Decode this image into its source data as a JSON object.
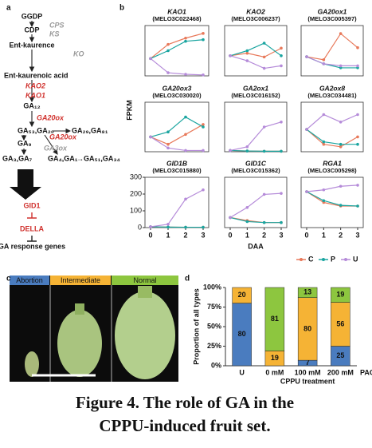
{
  "panels": [
    "a",
    "b",
    "c",
    "d"
  ],
  "caption": [
    "Figure 4. The role of GA in the",
    "CPPU-induced fruit set."
  ],
  "pathway": {
    "nodes": [
      {
        "text": "GGDP",
        "style": "plain"
      },
      {
        "text": "CDP",
        "style": "plain"
      },
      {
        "text": "CPS",
        "style": "gray"
      },
      {
        "text": "KS",
        "style": "gray"
      },
      {
        "text": "Ent-kaurence",
        "style": "plain"
      },
      {
        "text": "KO",
        "style": "gray"
      },
      {
        "text": "Ent-kaurenoic acid",
        "style": "plain"
      },
      {
        "text": "KAO2",
        "style": "red"
      },
      {
        "text": "KAO1",
        "style": "red"
      },
      {
        "text": "GA₁₂",
        "style": "plain"
      },
      {
        "text": "GA20ox",
        "style": "red"
      },
      {
        "text": "GA₅₃,GA₂₀",
        "style": "plain"
      },
      {
        "text": "GA₂₉,GA₈₁",
        "style": "plain"
      },
      {
        "text": "GA20ox",
        "style": "red"
      },
      {
        "text": "GA₉",
        "style": "plain"
      },
      {
        "text": "GA3ox",
        "style": "gray"
      },
      {
        "text": "GA₃,GA₇",
        "style": "plain"
      },
      {
        "text": "GA₄,GA₁",
        "style": "plain"
      },
      {
        "text": "→GA₅₁,GA₃₄",
        "style": "plain"
      },
      {
        "text": "GID1",
        "style": "reds"
      },
      {
        "text": "DELLA",
        "style": "reds"
      },
      {
        "text": "GA response genes",
        "style": "plain"
      }
    ]
  },
  "chart_data": [
    {
      "type": "line",
      "title": "KAO1",
      "subtitle": "(MELO3C022468)",
      "x": [
        0,
        1,
        2,
        3
      ],
      "ylim": [
        0,
        16
      ],
      "series": [
        {
          "name": "C",
          "color": "#e8795a",
          "values": [
            5.5,
            10,
            12,
            13.5
          ]
        },
        {
          "name": "P",
          "color": "#1aa5a0",
          "values": [
            5.5,
            8,
            11,
            11.5
          ]
        },
        {
          "name": "U",
          "color": "#b58bd9",
          "values": [
            5.5,
            1,
            0.5,
            0.3
          ]
        }
      ]
    },
    {
      "type": "line",
      "title": "KAO2",
      "subtitle": "(MELO3C006237)",
      "x": [
        0,
        1,
        2,
        3
      ],
      "ylim": [
        0,
        4
      ],
      "series": [
        {
          "name": "C",
          "color": "#e8795a",
          "values": [
            1.6,
            1.8,
            1.5,
            2.2
          ]
        },
        {
          "name": "P",
          "color": "#1aa5a0",
          "values": [
            1.6,
            2,
            2.6,
            1.6
          ]
        },
        {
          "name": "U",
          "color": "#b58bd9",
          "values": [
            1.6,
            1.2,
            0.6,
            0.8
          ]
        }
      ]
    },
    {
      "type": "line",
      "title": "GA20ox1",
      "subtitle": "(MELO3C005397)",
      "x": [
        0,
        1,
        2,
        3
      ],
      "ylim": [
        0,
        25
      ],
      "series": [
        {
          "name": "C",
          "color": "#e8795a",
          "values": [
            9.5,
            8,
            21,
            14
          ]
        },
        {
          "name": "P",
          "color": "#1aa5a0",
          "values": [
            9.5,
            6,
            4,
            4
          ]
        },
        {
          "name": "U",
          "color": "#b58bd9",
          "values": [
            9.5,
            6,
            5,
            5
          ]
        }
      ]
    },
    {
      "type": "line",
      "title": "GA20ox3",
      "subtitle": "(MELO3C030020)",
      "x": [
        0,
        1,
        2,
        3
      ],
      "ylim": [
        0,
        2
      ],
      "ylabel": "FPKM",
      "series": [
        {
          "name": "C",
          "color": "#e8795a",
          "values": [
            0.6,
            0.3,
            0.7,
            1.1
          ]
        },
        {
          "name": "P",
          "color": "#1aa5a0",
          "values": [
            0.6,
            0.8,
            1.4,
            1
          ]
        },
        {
          "name": "U",
          "color": "#b58bd9",
          "values": [
            0.6,
            0.15,
            0.05,
            0.05
          ]
        }
      ]
    },
    {
      "type": "line",
      "title": "GA2ox1",
      "subtitle": "(MELO3C016152)",
      "x": [
        0,
        1,
        2,
        3
      ],
      "ylim": [
        0,
        200
      ],
      "series": [
        {
          "name": "C",
          "color": "#e8795a",
          "values": [
            5,
            3,
            2,
            2
          ]
        },
        {
          "name": "P",
          "color": "#1aa5a0",
          "values": [
            5,
            3,
            2,
            2
          ]
        },
        {
          "name": "U",
          "color": "#b58bd9",
          "values": [
            5,
            20,
            100,
            120
          ]
        }
      ]
    },
    {
      "type": "line",
      "title": "GA2ox8",
      "subtitle": "(MELO3C034481)",
      "x": [
        0,
        1,
        2,
        3
      ],
      "ylim": [
        0,
        2
      ],
      "series": [
        {
          "name": "C",
          "color": "#e8795a",
          "values": [
            0.9,
            0.3,
            0.2,
            0.6
          ]
        },
        {
          "name": "P",
          "color": "#1aa5a0",
          "values": [
            0.9,
            0.4,
            0.3,
            0.3
          ]
        },
        {
          "name": "U",
          "color": "#b58bd9",
          "values": [
            0.9,
            1.5,
            1.2,
            1.5
          ]
        }
      ]
    },
    {
      "type": "line",
      "title": "GID1B",
      "subtitle": "(MELO3C015880)",
      "x": [
        0,
        1,
        2,
        3
      ],
      "ylim": [
        0,
        300
      ],
      "yticks": [
        0,
        100,
        200,
        300
      ],
      "series": [
        {
          "name": "C",
          "color": "#e8795a",
          "values": [
            5,
            3,
            2,
            2
          ]
        },
        {
          "name": "P",
          "color": "#1aa5a0",
          "values": [
            5,
            3,
            2,
            2
          ]
        },
        {
          "name": "U",
          "color": "#b58bd9",
          "values": [
            5,
            20,
            170,
            225
          ]
        }
      ]
    },
    {
      "type": "line",
      "title": "GID1C",
      "subtitle": "(MELO3C015362)",
      "x": [
        0,
        1,
        2,
        3
      ],
      "ylim": [
        0,
        50
      ],
      "xlabel": "DAA",
      "series": [
        {
          "name": "C",
          "color": "#e8795a",
          "values": [
            10,
            7,
            5,
            5
          ]
        },
        {
          "name": "P",
          "color": "#1aa5a0",
          "values": [
            10,
            6,
            5,
            5
          ]
        },
        {
          "name": "U",
          "color": "#b58bd9",
          "values": [
            10,
            20,
            33,
            34
          ]
        }
      ]
    },
    {
      "type": "line",
      "title": "RGA1",
      "subtitle": "(MELO3C005298)",
      "x": [
        0,
        1,
        2,
        3
      ],
      "ylim": [
        0,
        140
      ],
      "legend": "bottom-right",
      "series": [
        {
          "name": "C",
          "color": "#e8795a",
          "values": [
            100,
            70,
            60,
            60
          ]
        },
        {
          "name": "P",
          "color": "#1aa5a0",
          "values": [
            100,
            75,
            62,
            60
          ]
        },
        {
          "name": "U",
          "color": "#b58bd9",
          "values": [
            100,
            105,
            115,
            118
          ]
        }
      ]
    },
    {
      "type": "stacked_bar",
      "categories": [
        "U",
        "0 mM",
        "100 mM",
        "200 mM"
      ],
      "ylabel": "Proportion of all types",
      "xlabel": "CPPU treatment",
      "annotation": "PAC",
      "ylim": [
        0,
        100
      ],
      "yticks": [
        {
          "value": 0,
          "label": "0%"
        },
        {
          "value": 25,
          "label": "25%"
        },
        {
          "value": 50,
          "label": "50%"
        },
        {
          "value": 75,
          "label": "75%"
        },
        {
          "value": 100,
          "label": "100%"
        }
      ],
      "series": [
        {
          "name": "Abortion",
          "color": "#4a7cbf",
          "values": [
            80,
            0,
            7,
            25
          ]
        },
        {
          "name": "Intermediate",
          "color": "#f5b335",
          "values": [
            20,
            19,
            80,
            56
          ]
        },
        {
          "name": "Normal",
          "color": "#8dc63f",
          "values": [
            0,
            81,
            13,
            19
          ]
        }
      ]
    }
  ]
}
